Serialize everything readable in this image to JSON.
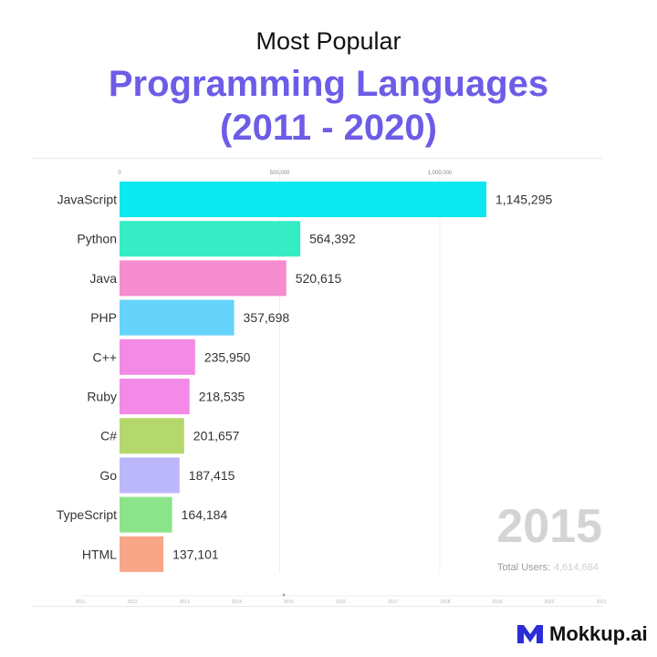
{
  "header": {
    "supertitle": "Most Popular",
    "title_line1": "Programming Languages",
    "title_line2": "(2011 - 2020)"
  },
  "brand": {
    "name": "Mokkup.ai",
    "icon": "mokkup-logo-icon",
    "color": "#2b2dd6"
  },
  "chart_data": {
    "type": "bar",
    "orientation": "horizontal",
    "categories": [
      "JavaScript",
      "Python",
      "Java",
      "PHP",
      "C++",
      "Ruby",
      "C#",
      "Go",
      "TypeScript",
      "HTML"
    ],
    "values": [
      1145295,
      564392,
      520615,
      357698,
      235950,
      218535,
      201657,
      187415,
      164184,
      137101
    ],
    "value_labels": [
      "1,145,295",
      "564,392",
      "520,615",
      "357,698",
      "235,950",
      "218,535",
      "201,657",
      "187,415",
      "164,184",
      "137,101"
    ],
    "colors": [
      "#0ce8f0",
      "#35ecc4",
      "#f48ccf",
      "#66d3fa",
      "#f38ae5",
      "#f48ae8",
      "#b4d86b",
      "#bcb7fb",
      "#8ce48a",
      "#f7a688"
    ],
    "x_ticks": [
      0,
      500000,
      1000000
    ],
    "x_tick_labels": [
      "0",
      "500,000",
      "1,000,000"
    ],
    "xlim": [
      0,
      1200000
    ],
    "year": "2015",
    "total_label": "Total Users:",
    "total_value": "4,614,684",
    "timeline_labels": [
      "2011",
      "2012",
      "2013",
      "2014",
      "2015",
      "2016",
      "2017",
      "2018",
      "2019",
      "2020",
      "2021"
    ],
    "timeline_progress": 0.5
  }
}
